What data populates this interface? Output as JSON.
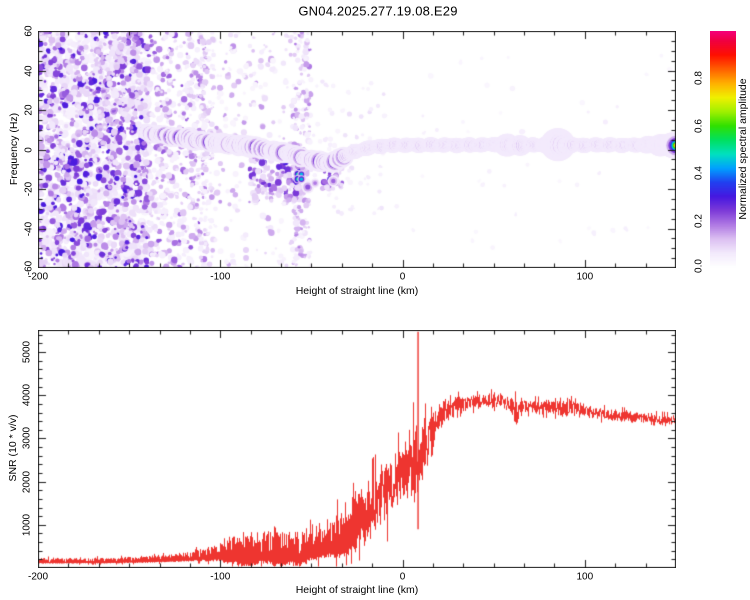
{
  "title": "GN04.2025.277.19.08.E29",
  "colors": {
    "snr_line": "#ee3530",
    "axis": "#1a1a1a",
    "background": "#ffffff"
  },
  "chart_data": [
    {
      "type": "heatmap",
      "title": "GN04.2025.277.19.08.E29",
      "xlabel": "Height of straight line (km)",
      "ylabel": "Frequency (Hz)",
      "xlim": [
        -200,
        150
      ],
      "ylim": [
        -60,
        60
      ],
      "grid": false,
      "xticks": {
        "major": [
          -200,
          -100,
          0,
          100
        ],
        "labels": [
          "-200",
          "-100",
          "0",
          "100"
        ],
        "minor_per_interval": 6
      },
      "yticks": {
        "major": [
          -60,
          -40,
          -20,
          0,
          20,
          40,
          60
        ],
        "labels": [
          "-60",
          "-40",
          "-20",
          "0",
          "20",
          "40",
          "60"
        ],
        "minor_step": 5
      },
      "colorbar": {
        "label": "Normalized spectral amplitude",
        "ticks": [
          0,
          0.2,
          0.4,
          0.6,
          0.8
        ],
        "tick_labels": [
          "0.0",
          "0.2",
          "0.4",
          "0.6",
          "0.8"
        ],
        "range": [
          0,
          1
        ]
      },
      "colormap_stops": [
        [
          0.0,
          "#ffffff"
        ],
        [
          0.06,
          "#f3eafc"
        ],
        [
          0.12,
          "#dcc0f2"
        ],
        [
          0.18,
          "#b07ae4"
        ],
        [
          0.24,
          "#7d3bd8"
        ],
        [
          0.3,
          "#4618e0"
        ],
        [
          0.36,
          "#2140f0"
        ],
        [
          0.42,
          "#00a0ff"
        ],
        [
          0.48,
          "#00e0c0"
        ],
        [
          0.54,
          "#00e060"
        ],
        [
          0.6,
          "#30e000"
        ],
        [
          0.66,
          "#a0f000"
        ],
        [
          0.72,
          "#f0f000"
        ],
        [
          0.78,
          "#ffb000"
        ],
        [
          0.84,
          "#ff6000"
        ],
        [
          0.9,
          "#ff1000"
        ],
        [
          0.96,
          "#f00040"
        ],
        [
          1.0,
          "#f50078"
        ]
      ],
      "signal_track": {
        "x": [
          -141,
          -138,
          -135,
          -132,
          -129,
          -126,
          -123,
          -120,
          -117,
          -114,
          -111,
          -108,
          -105,
          -102,
          -99,
          -96,
          -93,
          -90,
          -87,
          -84,
          -81,
          -78,
          -75,
          -72,
          -69,
          -66,
          -63,
          -60,
          -57,
          -54,
          -51,
          -48,
          -45,
          -42,
          -40,
          -38,
          -36,
          -34,
          -32,
          -30,
          -28,
          -26,
          -24,
          -22,
          -20,
          -18,
          -15,
          -12,
          -9,
          -6,
          -3,
          0,
          5,
          10,
          15,
          20,
          25,
          30,
          35,
          40,
          45,
          50,
          55,
          60,
          65,
          70,
          75,
          80,
          85,
          90,
          95,
          100,
          105,
          110,
          115,
          120,
          125,
          130,
          135,
          140,
          145,
          150
        ],
        "freq_hz": [
          9,
          8,
          7.5,
          8,
          7,
          6,
          6.5,
          5.5,
          6,
          4.5,
          5,
          3.5,
          4,
          3,
          3.5,
          2.5,
          3,
          2,
          2.5,
          1,
          1.5,
          0.5,
          0,
          -0.5,
          -1,
          -1.5,
          -2,
          -2.5,
          -3.5,
          -4.5,
          -5,
          -5.5,
          -6,
          -6.5,
          -7,
          -6.5,
          -5.5,
          -4.5,
          -3.5,
          -2.5,
          -1.5,
          -1,
          -0.5,
          0,
          0.5,
          1,
          1.5,
          1.5,
          2,
          2,
          2.5,
          2,
          2.5,
          2,
          2.5,
          2,
          2.5,
          2,
          2.5,
          2,
          2.5,
          2.5,
          2,
          2.5,
          2,
          2.5,
          2,
          2.5,
          2.5,
          2,
          2.5,
          2,
          2.5,
          2,
          2.5,
          2,
          2.5,
          2,
          2.5,
          2,
          2.5,
          2
        ]
      },
      "noise_regions": [
        {
          "name": "dense-noise-wash",
          "x0": -200,
          "x1": -139,
          "f0": -60,
          "f1": 60,
          "count": 520,
          "amp0": 0.03,
          "amp1": 0.08,
          "r0": 2.5,
          "r1": 5.5
        },
        {
          "name": "dense-noise-dots",
          "x0": -200,
          "x1": -139,
          "f0": -60,
          "f1": 60,
          "count": 1250,
          "amp0": 0.06,
          "amp1": 0.3,
          "r0": 1.2,
          "r1": 3.6
        },
        {
          "name": "medium-noise",
          "x0": -139,
          "x1": -108,
          "f0": -60,
          "f1": 60,
          "count": 420,
          "amp0": 0.04,
          "amp1": 0.22,
          "r0": 1.2,
          "r1": 3.4
        },
        {
          "name": "sparse-noise",
          "x0": -108,
          "x1": -50,
          "f0": -60,
          "f1": 60,
          "count": 260,
          "amp0": 0.03,
          "amp1": 0.16,
          "r0": 1.2,
          "r1": 3.2
        },
        {
          "name": "stripe-minus-108",
          "x0": -111,
          "x1": -104,
          "f0": -60,
          "f1": 60,
          "count": 90,
          "amp0": 0.04,
          "amp1": 0.14,
          "r0": 1.2,
          "r1": 3.0
        },
        {
          "name": "stripe-minus-56",
          "x0": -60,
          "x1": -51,
          "f0": -60,
          "f1": 60,
          "count": 150,
          "amp0": 0.04,
          "amp1": 0.18,
          "r0": 1.2,
          "r1": 3.2
        },
        {
          "name": "below-track-cluster",
          "x0": -84,
          "x1": -54,
          "f0": -26,
          "f1": -3,
          "count": 110,
          "amp0": 0.07,
          "amp1": 0.3,
          "r0": 1.5,
          "r1": 3.6
        },
        {
          "name": "below-dip-cluster",
          "x0": -44,
          "x1": -32,
          "f0": -20,
          "f1": -7,
          "count": 30,
          "amp0": 0.07,
          "amp1": 0.3,
          "r0": 1.5,
          "r1": 3.2
        },
        {
          "name": "mid-faint",
          "x0": -50,
          "x1": -10,
          "f0": -35,
          "f1": 35,
          "count": 60,
          "amp0": 0.03,
          "amp1": 0.08,
          "r0": 1.2,
          "r1": 2.6
        },
        {
          "name": "right-faint",
          "x0": -5,
          "x1": 150,
          "f0": -50,
          "f1": 50,
          "count": 45,
          "amp0": 0.02,
          "amp1": 0.05,
          "r0": 1.2,
          "r1": 2.8
        }
      ],
      "features": {
        "halo_bulges": [
          {
            "x": 85,
            "scale": 1.2,
            "width": 18
          },
          {
            "x": 57,
            "scale": 0.5,
            "width": 10
          },
          {
            "x": 64,
            "scale": 0.4,
            "width": 8
          }
        ],
        "tail_widen_from": 130,
        "sub_blobs": [
          {
            "x": -57.5,
            "f": -12.5,
            "amp": 0.5,
            "r": 2.2
          },
          {
            "x": -55.5,
            "f": -12.5,
            "amp": 0.45,
            "r": 2.0
          },
          {
            "x": -57.5,
            "f": -15,
            "amp": 0.5,
            "r": 2.2
          },
          {
            "x": -55.5,
            "f": -15,
            "amp": 0.45,
            "r": 2.0
          },
          {
            "x": -52,
            "f": -19,
            "amp": 0.22,
            "r": 3.2
          },
          {
            "x": -48,
            "f": -17,
            "amp": 0.18,
            "r": 2.4
          },
          {
            "x": -38,
            "f": -16,
            "amp": 0.2,
            "r": 2.8
          }
        ]
      }
    },
    {
      "type": "line",
      "xlabel": "Height of straight line (km)",
      "ylabel": "SNR (10 * v/v)",
      "xlim": [
        -200,
        150
      ],
      "ylim": [
        0,
        5510
      ],
      "grid": false,
      "xticks": {
        "major": [
          -200,
          -100,
          0,
          100
        ],
        "labels": [
          "-200",
          "-100",
          "0",
          "100"
        ],
        "minor_per_interval": 6
      },
      "yticks": {
        "major": [
          1000,
          2000,
          3000,
          4000,
          5000
        ],
        "labels": [
          "1000",
          "2000",
          "3000",
          "4000",
          "5000"
        ],
        "minor_step": 200
      },
      "series": [
        {
          "name": "SNR",
          "color": "#ee3530",
          "x": [
            -200,
            -180,
            -160,
            -150,
            -140,
            -130,
            -120,
            -110,
            -100,
            -95,
            -90,
            -85,
            -80,
            -75,
            -70,
            -65,
            -60,
            -55,
            -50,
            -45,
            -40,
            -35,
            -30,
            -25,
            -20,
            -15,
            -10,
            -5,
            0,
            4,
            7,
            10,
            14,
            18,
            22,
            26,
            30,
            35,
            40,
            45,
            50,
            55,
            60,
            63,
            66,
            70,
            75,
            80,
            85,
            90,
            93,
            96,
            100,
            110,
            120,
            130,
            140,
            150
          ],
          "y_mean": [
            170,
            172,
            178,
            188,
            200,
            225,
            260,
            310,
            380,
            420,
            450,
            430,
            450,
            520,
            560,
            540,
            510,
            500,
            560,
            640,
            720,
            820,
            950,
            1100,
            1300,
            1500,
            1700,
            1950,
            2150,
            2350,
            2500,
            2700,
            3000,
            3300,
            3550,
            3700,
            3780,
            3820,
            3840,
            3870,
            3890,
            3850,
            3780,
            3550,
            3760,
            3750,
            3730,
            3710,
            3690,
            3670,
            3850,
            3660,
            3630,
            3570,
            3520,
            3480,
            3440,
            3400
          ],
          "y_jitter": [
            60,
            60,
            62,
            65,
            70,
            80,
            95,
            130,
            200,
            280,
            330,
            380,
            330,
            350,
            450,
            420,
            400,
            380,
            350,
            380,
            420,
            500,
            550,
            600,
            650,
            700,
            750,
            700,
            650,
            700,
            950,
            950,
            600,
            420,
            320,
            250,
            190,
            165,
            155,
            155,
            160,
            155,
            170,
            350,
            160,
            150,
            150,
            150,
            150,
            190,
            300,
            160,
            140,
            130,
            130,
            120,
            120,
            120
          ]
        }
      ],
      "events": [
        {
          "type": "spike",
          "x": 8.5,
          "y_min": 900,
          "y_max": 5470
        }
      ]
    }
  ]
}
